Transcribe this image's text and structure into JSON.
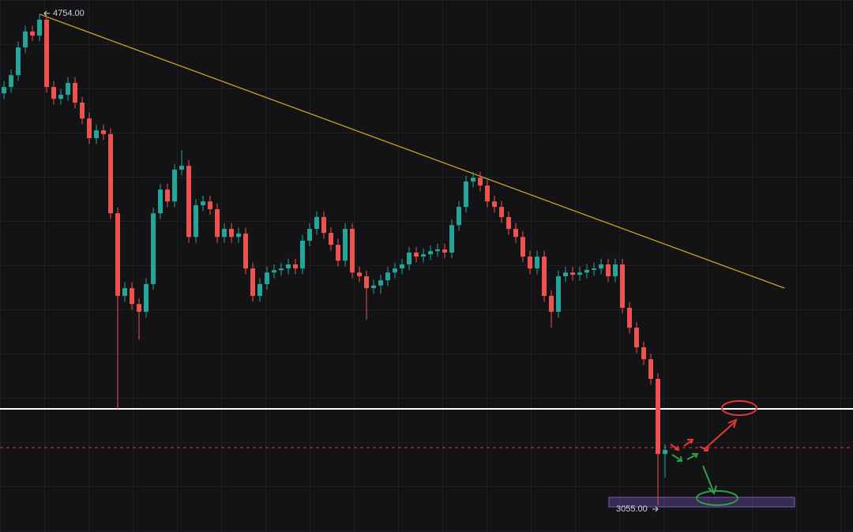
{
  "chart_data": {
    "type": "candlestick",
    "up_color": "#26a69a",
    "down_color": "#ef5350",
    "xlim": [
      -0.56,
      119.44
    ],
    "ylim": [
      2962,
      4803
    ],
    "open": [
      4480,
      4502,
      4543,
      4639,
      4694,
      4680,
      4735,
      4502,
      4461,
      4475,
      4516,
      4448,
      4393,
      4325,
      4352,
      4339,
      4065,
      3779,
      3806,
      3751,
      3724,
      3820,
      4065,
      4147,
      4106,
      4216,
      4229,
      3983,
      4093,
      4106,
      4079,
      3983,
      4011,
      3983,
      3995,
      3874,
      3779,
      3820,
      3860,
      3868,
      3874,
      3888,
      3874,
      3970,
      4011,
      4052,
      3997,
      3956,
      3901,
      4011,
      3860,
      3847,
      3806,
      3815,
      3833,
      3860,
      3874,
      3888,
      3929,
      3915,
      3923,
      3934,
      3940,
      3929,
      4024,
      4087,
      4175,
      4188,
      4161,
      4106,
      4087,
      4052,
      4011,
      3983,
      3915,
      3874,
      3915,
      3779,
      3724,
      3847,
      3860,
      3852,
      3860,
      3869,
      3874,
      3888,
      3847,
      3888,
      3738,
      3669,
      3601,
      3560,
      3492,
      3232
    ],
    "high": [
      4522,
      4563,
      4659,
      4714,
      4714,
      4754,
      4745,
      4522,
      4495,
      4536,
      4536,
      4468,
      4413,
      4372,
      4372,
      4359,
      4085,
      3826,
      3826,
      3771,
      3840,
      4085,
      4167,
      4167,
      4236,
      4284,
      4249,
      4113,
      4126,
      4126,
      4099,
      4031,
      4031,
      4015,
      4015,
      3894,
      3840,
      3880,
      3888,
      3894,
      3908,
      3908,
      3990,
      4031,
      4072,
      4072,
      4017,
      3976,
      4031,
      4031,
      3880,
      3867,
      3835,
      3853,
      3880,
      3894,
      3908,
      3949,
      3949,
      3943,
      3954,
      3960,
      3960,
      4044,
      4107,
      4195,
      4208,
      4208,
      4181,
      4126,
      4107,
      4072,
      4031,
      4003,
      3935,
      3935,
      3935,
      3799,
      3867,
      3880,
      3880,
      3880,
      3889,
      3894,
      3908,
      3908,
      3908,
      3908,
      3758,
      3689,
      3621,
      3580,
      3512,
      3266
    ],
    "low": [
      4460,
      4482,
      4523,
      4619,
      4660,
      4660,
      4482,
      4441,
      4441,
      4455,
      4428,
      4373,
      4305,
      4305,
      4319,
      4045,
      3388,
      3759,
      3731,
      3628,
      3704,
      3800,
      4045,
      4086,
      4086,
      4196,
      3963,
      3963,
      4073,
      4059,
      3963,
      3963,
      3963,
      3963,
      3854,
      3759,
      3759,
      3800,
      3840,
      3848,
      3854,
      3854,
      3854,
      3950,
      3991,
      3977,
      3936,
      3881,
      3881,
      3840,
      3827,
      3697,
      3786,
      3786,
      3813,
      3840,
      3854,
      3868,
      3895,
      3895,
      3903,
      3914,
      3909,
      3909,
      4004,
      4067,
      4155,
      4141,
      4086,
      4067,
      4032,
      3991,
      3963,
      3895,
      3854,
      3854,
      3759,
      3669,
      3704,
      3827,
      3832,
      3832,
      3840,
      3849,
      3854,
      3827,
      3827,
      3718,
      3649,
      3581,
      3540,
      3472,
      3055,
      3150
    ],
    "close": [
      4502,
      4543,
      4639,
      4694,
      4680,
      4735,
      4502,
      4461,
      4475,
      4516,
      4448,
      4393,
      4325,
      4352,
      4339,
      4065,
      3779,
      3806,
      3751,
      3724,
      3820,
      4065,
      4147,
      4106,
      4216,
      4229,
      3983,
      4093,
      4106,
      4079,
      3983,
      4011,
      3983,
      3995,
      3874,
      3779,
      3820,
      3860,
      3868,
      3874,
      3888,
      3874,
      3970,
      4011,
      4052,
      3997,
      3956,
      3901,
      4011,
      3860,
      3847,
      3806,
      3815,
      3833,
      3860,
      3874,
      3888,
      3929,
      3915,
      3923,
      3934,
      3940,
      3929,
      4024,
      4087,
      4175,
      4188,
      4161,
      4106,
      4087,
      4052,
      4011,
      3983,
      3915,
      3874,
      3915,
      3779,
      3724,
      3847,
      3860,
      3852,
      3860,
      3869,
      3874,
      3888,
      3847,
      3888,
      3738,
      3669,
      3601,
      3560,
      3492,
      3232,
      3246
    ],
    "annotations": [
      {
        "value": 4754,
        "label": "4754.00"
      },
      {
        "value": 3055,
        "label": "3055.00"
      }
    ],
    "levels": [
      {
        "value": 3388,
        "color": "#ffffff",
        "dashed": false
      },
      {
        "value": 3254,
        "color": "#e53935",
        "dashed": true
      }
    ],
    "trendline": {
      "start": [
        5,
        4754
      ],
      "end": [
        109.8,
        3806
      ],
      "color": "#c9a227"
    },
    "zone": {
      "range": [
        3049,
        3082
      ],
      "color": "#7e57c2"
    }
  }
}
